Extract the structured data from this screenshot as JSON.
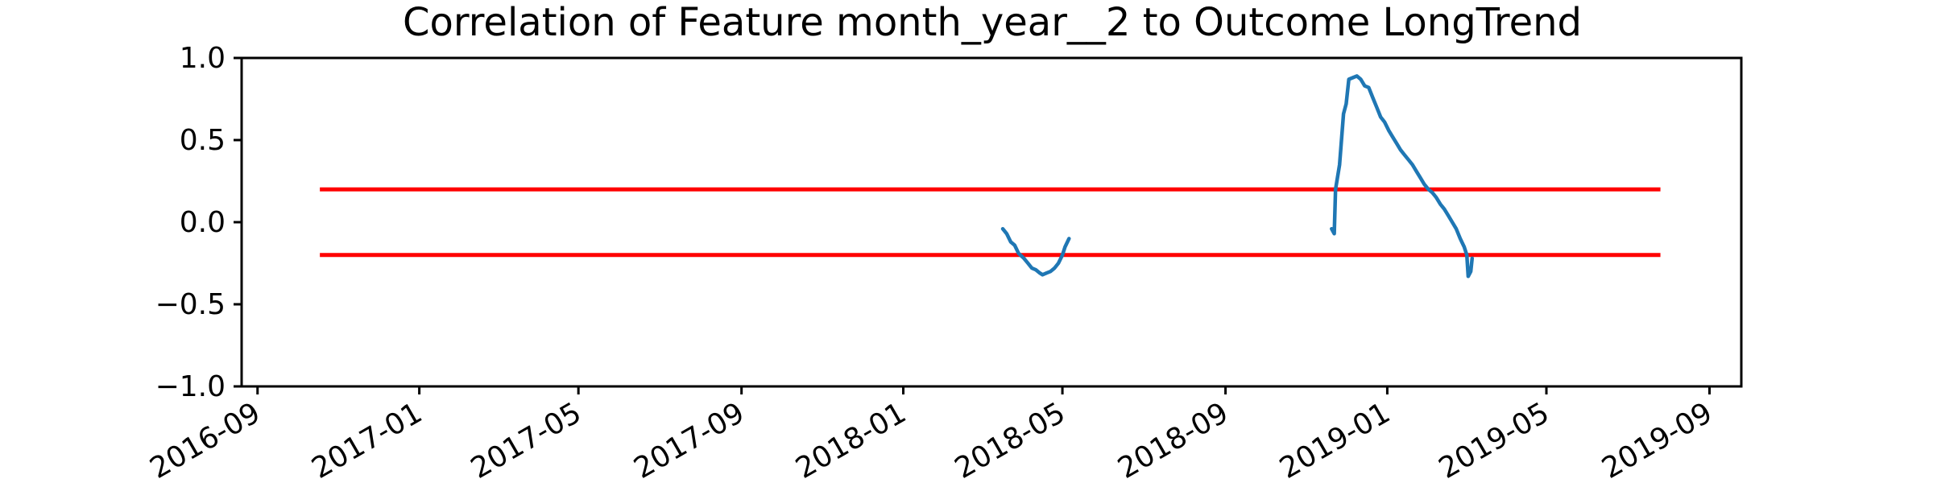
{
  "chart_data": {
    "type": "line",
    "title": "Correlation of Feature month_year__2 to Outcome LongTrend",
    "xlabel": "",
    "ylabel": "",
    "x_axis_type": "date",
    "xlim": [
      "2016-08-20",
      "2019-09-25"
    ],
    "ylim": [
      -1.0,
      1.0
    ],
    "x_ticks": [
      "2016-09",
      "2017-01",
      "2017-05",
      "2017-09",
      "2018-01",
      "2018-05",
      "2018-09",
      "2019-01",
      "2019-05",
      "2019-09"
    ],
    "y_ticks": [
      "1.0",
      "0.5",
      "0.0",
      "−0.5",
      "−1.0"
    ],
    "grid": false,
    "legend": "none",
    "colors": {
      "series": "#1f77b4",
      "thresholds": "#ff0000"
    },
    "thresholds": [
      {
        "y": 0.2,
        "x_start": "2016-10-18",
        "x_end": "2019-07-26"
      },
      {
        "y": -0.2,
        "x_start": "2016-10-18",
        "x_end": "2019-07-26"
      }
    ],
    "series": [
      {
        "segments": [
          [
            [
              "2018-03-17",
              -0.04
            ],
            [
              "2018-03-20",
              -0.07
            ],
            [
              "2018-03-23",
              -0.12
            ],
            [
              "2018-03-26",
              -0.14
            ],
            [
              "2018-03-29",
              -0.19
            ],
            [
              "2018-04-02",
              -0.22
            ],
            [
              "2018-04-05",
              -0.25
            ],
            [
              "2018-04-08",
              -0.28
            ],
            [
              "2018-04-11",
              -0.29
            ],
            [
              "2018-04-14",
              -0.31
            ],
            [
              "2018-04-16",
              -0.32
            ],
            [
              "2018-04-19",
              -0.31
            ],
            [
              "2018-04-22",
              -0.3
            ],
            [
              "2018-04-25",
              -0.28
            ],
            [
              "2018-04-28",
              -0.25
            ],
            [
              "2018-05-01",
              -0.2
            ],
            [
              "2018-05-03",
              -0.15
            ],
            [
              "2018-05-06",
              -0.1
            ]
          ],
          [
            [
              "2018-11-20",
              -0.04
            ],
            [
              "2018-11-22",
              -0.07
            ],
            [
              "2018-11-23",
              0.2
            ],
            [
              "2018-11-26",
              0.35
            ],
            [
              "2018-11-29",
              0.66
            ],
            [
              "2018-12-01",
              0.72
            ],
            [
              "2018-12-03",
              0.87
            ],
            [
              "2018-12-06",
              0.88
            ],
            [
              "2018-12-09",
              0.89
            ],
            [
              "2018-12-12",
              0.87
            ],
            [
              "2018-12-15",
              0.83
            ],
            [
              "2018-12-18",
              0.82
            ],
            [
              "2018-12-21",
              0.76
            ],
            [
              "2018-12-24",
              0.7
            ],
            [
              "2018-12-27",
              0.64
            ],
            [
              "2018-12-30",
              0.61
            ],
            [
              "2019-01-02",
              0.56
            ],
            [
              "2019-01-05",
              0.52
            ],
            [
              "2019-01-08",
              0.48
            ],
            [
              "2019-01-11",
              0.44
            ],
            [
              "2019-01-14",
              0.41
            ],
            [
              "2019-01-17",
              0.38
            ],
            [
              "2019-01-20",
              0.35
            ],
            [
              "2019-01-23",
              0.31
            ],
            [
              "2019-01-26",
              0.27
            ],
            [
              "2019-01-29",
              0.23
            ],
            [
              "2019-02-01",
              0.2
            ],
            [
              "2019-02-04",
              0.18
            ],
            [
              "2019-02-07",
              0.15
            ],
            [
              "2019-02-10",
              0.11
            ],
            [
              "2019-02-13",
              0.08
            ],
            [
              "2019-02-16",
              0.04
            ],
            [
              "2019-02-19",
              0.0
            ],
            [
              "2019-02-22",
              -0.04
            ],
            [
              "2019-02-25",
              -0.1
            ],
            [
              "2019-02-28",
              -0.15
            ],
            [
              "2019-03-02",
              -0.2
            ],
            [
              "2019-03-03",
              -0.33
            ],
            [
              "2019-03-05",
              -0.3
            ],
            [
              "2019-03-06",
              -0.22
            ]
          ]
        ]
      }
    ]
  }
}
